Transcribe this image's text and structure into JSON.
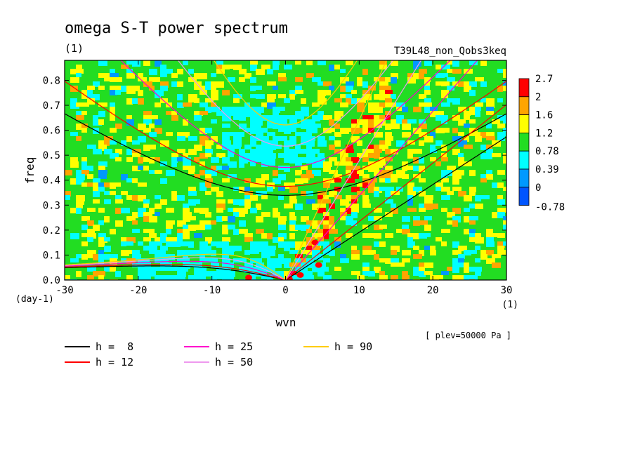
{
  "chart_data": {
    "type": "heatmap",
    "title": "omega S-T power spectrum",
    "units": "(1)",
    "experiment": "T39L48_non_Qobs3keq",
    "xlabel": "wvn",
    "ylabel": "freq",
    "x_unit": "(1)",
    "y_unit": "(day-1)",
    "xlim": [
      -30,
      30
    ],
    "ylim": [
      0,
      0.88
    ],
    "x_ticks": [
      -30,
      -20,
      -10,
      0,
      10,
      20,
      30
    ],
    "y_ticks": [
      0.0,
      0.1,
      0.2,
      0.3,
      0.4,
      0.5,
      0.6,
      0.7,
      0.8
    ],
    "x_tick_labels": [
      "-30",
      "-20",
      "-10",
      "0",
      "10",
      "20",
      "30"
    ],
    "y_tick_labels": [
      "0.0",
      "0.1",
      "0.2",
      "0.3",
      "0.4",
      "0.5",
      "0.6",
      "0.7",
      "0.8"
    ],
    "plev_note": "[ plev=50000 Pa ]",
    "colorbar": {
      "levels": [
        "2.7",
        "2",
        "1.6",
        "1.2",
        "0.78",
        "0.39",
        "0",
        "-0.78"
      ],
      "colors": [
        "#ff0000",
        "#ffa500",
        "#ffff00",
        "#22dd22",
        "#00ffff",
        "#0099ff",
        "#0055ff"
      ]
    },
    "dispersion_curves": [
      {
        "label": "h =  8",
        "h": 8,
        "color": "#000000"
      },
      {
        "label": "h = 12",
        "h": 12,
        "color": "#ff0000"
      },
      {
        "label": "h = 25",
        "h": 25,
        "color": "#ff00cc"
      },
      {
        "label": "h = 50",
        "h": 50,
        "color": "#ee99ee"
      },
      {
        "label": "h = 90",
        "h": 90,
        "color": "#ffcc00"
      }
    ]
  }
}
